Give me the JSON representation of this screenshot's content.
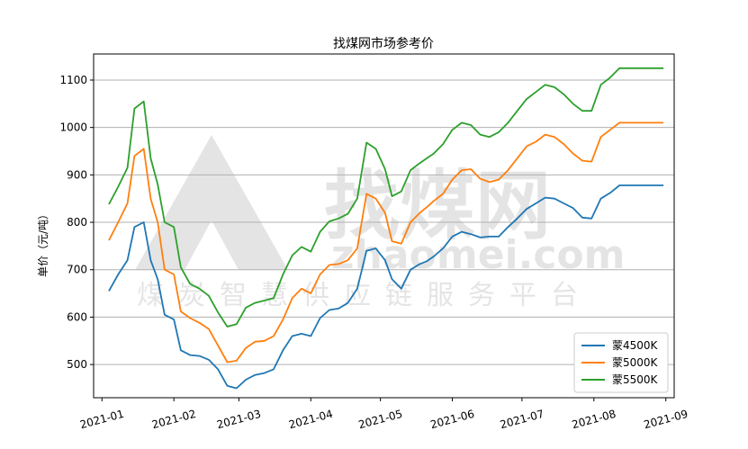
{
  "chart_data": {
    "type": "line",
    "title": "找煤网市场参考价",
    "xlabel": "",
    "ylabel": "单价（元/吨）",
    "ylim": [
      430,
      1155
    ],
    "x_ticks": [
      "2021-01",
      "2021-02",
      "2021-03",
      "2021-04",
      "2021-05",
      "2021-06",
      "2021-07",
      "2021-08",
      "2021-09"
    ],
    "y_ticks": [
      500,
      600,
      700,
      800,
      900,
      1000,
      1100
    ],
    "grid": "horizontal",
    "legend_position": "bottom-right",
    "watermark": {
      "line1": "找煤网",
      "line2": "zhaomei.com",
      "line3": "煤炭智慧供应链服务平台"
    },
    "x": [
      "2021-01-04",
      "2021-01-08",
      "2021-01-12",
      "2021-01-15",
      "2021-01-19",
      "2021-01-22",
      "2021-01-25",
      "2021-01-28",
      "2021-02-01",
      "2021-02-04",
      "2021-02-08",
      "2021-02-12",
      "2021-02-16",
      "2021-02-20",
      "2021-02-24",
      "2021-02-28",
      "2021-03-04",
      "2021-03-08",
      "2021-03-12",
      "2021-03-16",
      "2021-03-20",
      "2021-03-24",
      "2021-03-28",
      "2021-04-01",
      "2021-04-05",
      "2021-04-09",
      "2021-04-13",
      "2021-04-17",
      "2021-04-21",
      "2021-04-25",
      "2021-04-29",
      "2021-05-03",
      "2021-05-06",
      "2021-05-10",
      "2021-05-14",
      "2021-05-18",
      "2021-05-21",
      "2021-05-24",
      "2021-05-28",
      "2021-06-01",
      "2021-06-05",
      "2021-06-09",
      "2021-06-13",
      "2021-06-17",
      "2021-06-21",
      "2021-06-25",
      "2021-06-29",
      "2021-07-03",
      "2021-07-07",
      "2021-07-11",
      "2021-07-15",
      "2021-07-19",
      "2021-07-23",
      "2021-07-27",
      "2021-07-31",
      "2021-08-04",
      "2021-08-08",
      "2021-08-12",
      "2021-08-16",
      "2021-08-20",
      "2021-08-24",
      "2021-08-28",
      "2021-08-31"
    ],
    "series": [
      {
        "name": "蒙4500K",
        "color": "#1f77b4",
        "values": [
          655,
          690,
          720,
          790,
          800,
          720,
          680,
          605,
          595,
          530,
          520,
          518,
          510,
          490,
          455,
          450,
          468,
          478,
          482,
          490,
          530,
          560,
          565,
          560,
          598,
          615,
          618,
          630,
          660,
          740,
          745,
          720,
          680,
          660,
          700,
          712,
          718,
          728,
          745,
          770,
          780,
          775,
          768,
          770,
          770,
          790,
          808,
          828,
          840,
          852,
          850,
          840,
          830,
          810,
          808,
          850,
          862,
          878,
          878,
          878,
          878,
          878,
          878
        ]
      },
      {
        "name": "蒙5000K",
        "color": "#ff7f0e",
        "values": [
          762,
          800,
          840,
          940,
          955,
          850,
          800,
          700,
          690,
          612,
          598,
          588,
          575,
          540,
          505,
          508,
          535,
          548,
          550,
          560,
          595,
          640,
          660,
          650,
          690,
          710,
          712,
          720,
          745,
          860,
          850,
          820,
          760,
          755,
          800,
          820,
          832,
          845,
          860,
          890,
          910,
          912,
          892,
          885,
          890,
          910,
          935,
          960,
          970,
          985,
          980,
          965,
          945,
          930,
          928,
          980,
          995,
          1010,
          1010,
          1010,
          1010,
          1010,
          1010
        ]
      },
      {
        "name": "蒙5500K",
        "color": "#2ca02c",
        "values": [
          838,
          875,
          915,
          1040,
          1055,
          935,
          880,
          800,
          790,
          705,
          670,
          660,
          645,
          610,
          580,
          585,
          620,
          630,
          635,
          640,
          690,
          730,
          748,
          738,
          780,
          802,
          808,
          818,
          850,
          968,
          955,
          912,
          855,
          865,
          910,
          925,
          935,
          945,
          965,
          995,
          1010,
          1005,
          985,
          980,
          990,
          1010,
          1035,
          1060,
          1075,
          1090,
          1085,
          1070,
          1050,
          1035,
          1035,
          1090,
          1105,
          1125,
          1125,
          1125,
          1125,
          1125,
          1125
        ]
      }
    ]
  }
}
